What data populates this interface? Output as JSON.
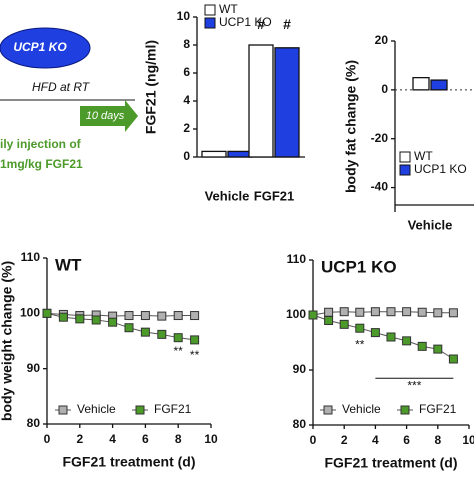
{
  "schematic": {
    "mouse_label": "UCP1 KO",
    "diet": "HFD at RT",
    "duration": "10 days",
    "injection_line1": "ily injection of",
    "injection_line2": "1mg/kg FGF21"
  },
  "chart_data": [
    {
      "type": "bar",
      "ylabel": "FGF21 (ng/ml)",
      "categories": [
        "Vehicle",
        "FGF21"
      ],
      "series": [
        {
          "name": "WT",
          "color": "#ffffff",
          "values": [
            0.4,
            8.0
          ]
        },
        {
          "name": "UCP1 KO",
          "color": "#1f3fe0",
          "values": [
            0.4,
            7.8
          ]
        }
      ],
      "ylim": [
        0,
        10
      ],
      "yticks": [
        0,
        2,
        4,
        6,
        8,
        10
      ],
      "legend": "top-left",
      "annotations": [
        {
          "text": "#",
          "category": "FGF21",
          "series": "WT",
          "y": 9.4
        },
        {
          "text": "#",
          "category": "FGF21",
          "series": "UCP1 KO",
          "y": 9.4
        }
      ]
    },
    {
      "type": "bar",
      "ylabel": "body fat change (%)",
      "categories": [
        "Vehicle"
      ],
      "series": [
        {
          "name": "WT",
          "color": "#ffffff",
          "values": [
            5
          ]
        },
        {
          "name": "UCP1 KO",
          "color": "#1f3fe0",
          "values": [
            4
          ]
        }
      ],
      "ylim": [
        -50,
        20
      ],
      "yticks": [
        -40,
        -20,
        0,
        20
      ],
      "legend": "bottom-left",
      "zero_line": "dotted",
      "annotations": []
    },
    {
      "type": "line",
      "title": "WT",
      "xlabel": "FGF21 treatment (d)",
      "ylabel": "body weight change (%)",
      "x": [
        0,
        1,
        2,
        3,
        4,
        5,
        6,
        7,
        8,
        9
      ],
      "series": [
        {
          "name": "Vehicle",
          "color": "#b0b0b0",
          "values": [
            100,
            99.8,
            99.6,
            99.7,
            99.5,
            99.6,
            99.6,
            99.5,
            99.6,
            99.6
          ]
        },
        {
          "name": "FGF21",
          "color": "#4c9a2a",
          "values": [
            100,
            99.3,
            99.0,
            98.8,
            98.4,
            97.4,
            96.6,
            96.2,
            95.6,
            95.2
          ]
        }
      ],
      "xlim": [
        0,
        10
      ],
      "xticks": [
        0,
        2,
        4,
        6,
        8,
        10
      ],
      "ylim": [
        80,
        110
      ],
      "yticks": [
        80,
        90,
        100,
        110
      ],
      "legend": "bottom",
      "annotations": [
        {
          "text": "**",
          "x": 8,
          "y": 93
        },
        {
          "text": "**",
          "x": 9,
          "y": 92.3
        }
      ]
    },
    {
      "type": "line",
      "title": "UCP1 KO",
      "xlabel": "FGF21 treatment (d)",
      "x": [
        0,
        1,
        2,
        3,
        4,
        5,
        6,
        7,
        8,
        9
      ],
      "series": [
        {
          "name": "Vehicle",
          "color": "#b0b0b0",
          "values": [
            100,
            100.5,
            100.6,
            100.5,
            100.6,
            100.6,
            100.6,
            100.5,
            100.4,
            100.4
          ]
        },
        {
          "name": "FGF21",
          "color": "#4c9a2a",
          "values": [
            100,
            99.0,
            98.3,
            97.6,
            96.8,
            96.0,
            95.3,
            94.3,
            93.8,
            92.0
          ]
        }
      ],
      "xlim": [
        0,
        10
      ],
      "xticks": [
        0,
        2,
        4,
        6,
        8,
        10
      ],
      "ylim": [
        80,
        110
      ],
      "yticks": [
        80,
        90,
        100,
        110
      ],
      "legend": "bottom",
      "annotations": [
        {
          "text": "**",
          "x": 3,
          "y": 94.5
        },
        {
          "text": "***",
          "x": [
            4,
            9
          ],
          "y": 88.5
        }
      ]
    }
  ]
}
